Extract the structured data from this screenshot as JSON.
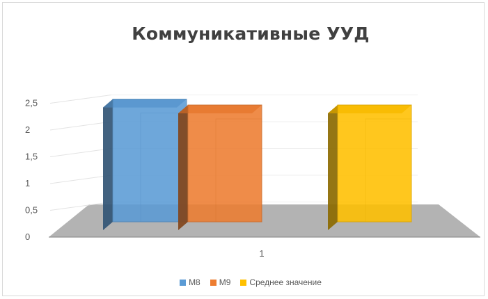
{
  "chart_data": {
    "type": "bar",
    "title": "Коммуникативные УУД",
    "categories": [
      "1"
    ],
    "series": [
      {
        "name": "М8",
        "values": [
          2.1
        ],
        "color": "#5b9bd5"
      },
      {
        "name": "М9",
        "values": [
          2.0
        ],
        "color": "#ed7d31"
      },
      {
        "name": "Среднее значение",
        "values": [
          2.0
        ],
        "color": "#ffc000"
      }
    ],
    "yticks": [
      "0",
      "0,5",
      "1",
      "1,5",
      "2",
      "2,5"
    ],
    "ylim": [
      0,
      2.5
    ],
    "grid": true,
    "legend_position": "bottom",
    "style": "3d-clustered-column"
  }
}
